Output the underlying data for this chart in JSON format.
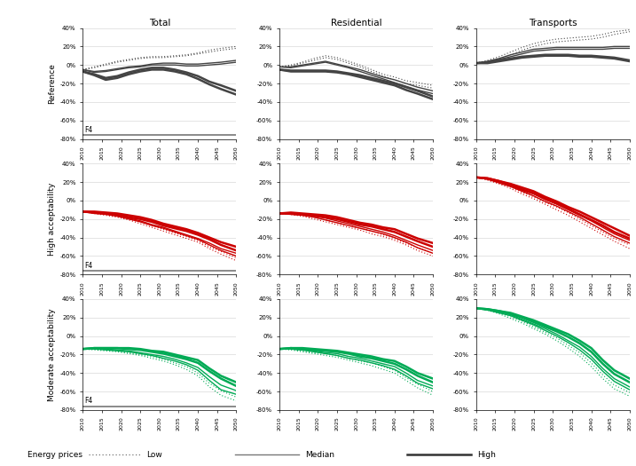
{
  "years": [
    2010,
    2013,
    2016,
    2019,
    2022,
    2025,
    2028,
    2031,
    2034,
    2037,
    2040,
    2043,
    2046,
    2050
  ],
  "col_titles": [
    "Total",
    "Residential",
    "Transports"
  ],
  "row_titles": [
    "Reference",
    "High acceptability",
    "Moderate acceptability"
  ],
  "ylim": [
    -80,
    40
  ],
  "yticks": [
    -80,
    -60,
    -40,
    -20,
    0,
    20,
    40
  ],
  "ytick_labels": [
    "-80%",
    "-60%",
    "-40%",
    "-20%",
    "0%",
    "20%",
    "40%"
  ],
  "f4_y": -76,
  "colors": {
    "reference": "#444444",
    "high": "#cc0000",
    "moderate": "#00aa55"
  },
  "data": {
    "reference": {
      "total": {
        "low1": [
          -5,
          -2,
          1,
          4,
          6,
          8,
          9,
          9,
          10,
          11,
          13,
          16,
          18,
          20
        ],
        "low2": [
          -5,
          -3,
          0,
          3,
          5,
          7,
          8,
          8,
          9,
          10,
          12,
          14,
          16,
          18
        ],
        "median1": [
          -5,
          -7,
          -6,
          -4,
          -2,
          -1,
          1,
          2,
          2,
          1,
          1,
          2,
          3,
          5
        ],
        "median2": [
          -5,
          -8,
          -7,
          -5,
          -3,
          -2,
          0,
          0,
          0,
          -1,
          -1,
          0,
          1,
          3
        ],
        "high1": [
          -7,
          -10,
          -14,
          -12,
          -8,
          -5,
          -3,
          -3,
          -5,
          -8,
          -12,
          -18,
          -22,
          -28
        ],
        "high2": [
          -7,
          -11,
          -16,
          -14,
          -10,
          -7,
          -5,
          -5,
          -7,
          -10,
          -15,
          -21,
          -26,
          -32
        ]
      },
      "residential": {
        "low1": [
          -2,
          0,
          3,
          7,
          10,
          8,
          4,
          0,
          -5,
          -10,
          -13,
          -17,
          -19,
          -22
        ],
        "low2": [
          -2,
          -1,
          2,
          5,
          8,
          6,
          2,
          -2,
          -7,
          -12,
          -16,
          -20,
          -22,
          -25
        ],
        "median1": [
          -2,
          -2,
          0,
          2,
          4,
          1,
          -2,
          -5,
          -9,
          -13,
          -16,
          -20,
          -24,
          -28
        ],
        "median2": [
          -2,
          -3,
          -1,
          1,
          3,
          0,
          -3,
          -7,
          -11,
          -15,
          -19,
          -23,
          -27,
          -31
        ],
        "high1": [
          -5,
          -6,
          -6,
          -6,
          -6,
          -7,
          -9,
          -11,
          -14,
          -17,
          -20,
          -24,
          -28,
          -34
        ],
        "high2": [
          -5,
          -7,
          -7,
          -7,
          -7,
          -8,
          -10,
          -13,
          -16,
          -19,
          -22,
          -27,
          -31,
          -37
        ]
      },
      "transports": {
        "low1": [
          2,
          5,
          9,
          14,
          19,
          23,
          26,
          28,
          29,
          30,
          31,
          33,
          36,
          38
        ],
        "low2": [
          2,
          4,
          7,
          11,
          16,
          20,
          23,
          25,
          26,
          27,
          28,
          30,
          33,
          36
        ],
        "median1": [
          2,
          4,
          7,
          11,
          14,
          17,
          18,
          19,
          19,
          19,
          19,
          19,
          20,
          20
        ],
        "median2": [
          2,
          3,
          6,
          9,
          12,
          15,
          16,
          17,
          17,
          17,
          17,
          17,
          18,
          18
        ],
        "high1": [
          2,
          3,
          5,
          7,
          9,
          10,
          11,
          11,
          11,
          10,
          10,
          9,
          8,
          5
        ],
        "high2": [
          2,
          2,
          4,
          6,
          8,
          9,
          10,
          10,
          10,
          9,
          9,
          8,
          7,
          4
        ]
      }
    },
    "high": {
      "total": {
        "low1": [
          -12,
          -14,
          -16,
          -18,
          -21,
          -25,
          -29,
          -33,
          -37,
          -41,
          -45,
          -52,
          -58,
          -65
        ],
        "low2": [
          -12,
          -13,
          -15,
          -17,
          -20,
          -23,
          -27,
          -31,
          -35,
          -39,
          -43,
          -50,
          -55,
          -62
        ],
        "median1": [
          -12,
          -14,
          -15,
          -17,
          -20,
          -23,
          -27,
          -30,
          -34,
          -38,
          -42,
          -48,
          -54,
          -60
        ],
        "median2": [
          -12,
          -13,
          -14,
          -16,
          -19,
          -22,
          -26,
          -29,
          -33,
          -37,
          -41,
          -46,
          -52,
          -57
        ],
        "high1": [
          -12,
          -13,
          -14,
          -15,
          -18,
          -20,
          -23,
          -27,
          -30,
          -33,
          -37,
          -42,
          -48,
          -54
        ],
        "high2": [
          -12,
          -12,
          -13,
          -14,
          -16,
          -18,
          -21,
          -25,
          -28,
          -31,
          -35,
          -40,
          -45,
          -50
        ]
      },
      "residential": {
        "low1": [
          -14,
          -15,
          -17,
          -20,
          -23,
          -26,
          -29,
          -32,
          -36,
          -39,
          -43,
          -48,
          -54,
          -60
        ],
        "low2": [
          -14,
          -15,
          -16,
          -18,
          -21,
          -24,
          -27,
          -30,
          -33,
          -37,
          -41,
          -46,
          -51,
          -57
        ],
        "median1": [
          -14,
          -15,
          -16,
          -18,
          -21,
          -24,
          -27,
          -30,
          -33,
          -36,
          -40,
          -45,
          -51,
          -57
        ],
        "median2": [
          -14,
          -14,
          -15,
          -17,
          -19,
          -22,
          -25,
          -28,
          -31,
          -34,
          -38,
          -43,
          -48,
          -54
        ],
        "high1": [
          -14,
          -14,
          -15,
          -16,
          -18,
          -20,
          -23,
          -26,
          -28,
          -31,
          -34,
          -39,
          -44,
          -50
        ],
        "high2": [
          -14,
          -13,
          -14,
          -15,
          -16,
          -18,
          -21,
          -24,
          -26,
          -29,
          -31,
          -36,
          -41,
          -46
        ]
      },
      "transports": {
        "low1": [
          25,
          22,
          18,
          13,
          7,
          2,
          -4,
          -10,
          -16,
          -23,
          -30,
          -37,
          -44,
          -52
        ],
        "low2": [
          25,
          23,
          19,
          15,
          9,
          4,
          -2,
          -7,
          -13,
          -20,
          -27,
          -34,
          -41,
          -48
        ],
        "median1": [
          25,
          23,
          19,
          15,
          10,
          5,
          -1,
          -6,
          -12,
          -18,
          -25,
          -32,
          -39,
          -46
        ],
        "median2": [
          25,
          23,
          20,
          16,
          11,
          7,
          1,
          -4,
          -10,
          -16,
          -22,
          -29,
          -36,
          -43
        ],
        "high1": [
          25,
          24,
          21,
          17,
          12,
          8,
          2,
          -3,
          -9,
          -15,
          -21,
          -27,
          -34,
          -41
        ],
        "high2": [
          25,
          24,
          21,
          18,
          14,
          10,
          4,
          -1,
          -7,
          -12,
          -18,
          -24,
          -30,
          -38
        ]
      }
    },
    "moderate": {
      "total": {
        "low1": [
          -14,
          -15,
          -16,
          -17,
          -19,
          -21,
          -24,
          -27,
          -31,
          -36,
          -43,
          -55,
          -64,
          -70
        ],
        "low2": [
          -14,
          -14,
          -15,
          -16,
          -18,
          -20,
          -22,
          -25,
          -29,
          -33,
          -40,
          -51,
          -59,
          -66
        ],
        "median1": [
          -14,
          -14,
          -15,
          -16,
          -17,
          -19,
          -21,
          -24,
          -27,
          -31,
          -37,
          -48,
          -58,
          -63
        ],
        "median2": [
          -14,
          -14,
          -14,
          -15,
          -16,
          -18,
          -20,
          -22,
          -25,
          -29,
          -34,
          -44,
          -53,
          -59
        ],
        "high1": [
          -14,
          -13,
          -13,
          -13,
          -14,
          -15,
          -17,
          -19,
          -22,
          -25,
          -29,
          -38,
          -46,
          -54
        ],
        "high2": [
          -14,
          -13,
          -13,
          -13,
          -13,
          -14,
          -16,
          -17,
          -20,
          -23,
          -26,
          -35,
          -43,
          -50
        ]
      },
      "residential": {
        "low1": [
          -14,
          -15,
          -17,
          -19,
          -21,
          -23,
          -26,
          -29,
          -32,
          -36,
          -40,
          -48,
          -56,
          -64
        ],
        "low2": [
          -14,
          -14,
          -16,
          -18,
          -19,
          -21,
          -24,
          -27,
          -29,
          -33,
          -37,
          -45,
          -52,
          -60
        ],
        "median1": [
          -14,
          -14,
          -15,
          -17,
          -19,
          -21,
          -24,
          -26,
          -29,
          -32,
          -36,
          -43,
          -51,
          -57
        ],
        "median2": [
          -14,
          -14,
          -15,
          -16,
          -18,
          -19,
          -22,
          -24,
          -27,
          -30,
          -33,
          -40,
          -48,
          -54
        ],
        "high1": [
          -14,
          -13,
          -14,
          -15,
          -16,
          -17,
          -19,
          -22,
          -24,
          -27,
          -30,
          -36,
          -43,
          -50
        ],
        "high2": [
          -14,
          -13,
          -13,
          -14,
          -15,
          -16,
          -18,
          -20,
          -22,
          -25,
          -27,
          -33,
          -40,
          -46
        ]
      },
      "transports": {
        "low1": [
          30,
          28,
          24,
          19,
          14,
          8,
          2,
          -5,
          -13,
          -22,
          -33,
          -46,
          -57,
          -65
        ],
        "low2": [
          30,
          28,
          25,
          21,
          16,
          10,
          4,
          -2,
          -10,
          -18,
          -29,
          -42,
          -53,
          -61
        ],
        "median1": [
          30,
          28,
          25,
          22,
          17,
          12,
          6,
          0,
          -7,
          -15,
          -25,
          -38,
          -49,
          -58
        ],
        "median2": [
          30,
          29,
          26,
          23,
          18,
          13,
          8,
          2,
          -5,
          -12,
          -22,
          -35,
          -46,
          -55
        ],
        "high1": [
          30,
          29,
          27,
          24,
          20,
          15,
          10,
          5,
          -1,
          -8,
          -17,
          -30,
          -41,
          -50
        ],
        "high2": [
          30,
          29,
          27,
          25,
          21,
          17,
          12,
          7,
          2,
          -5,
          -13,
          -26,
          -37,
          -46
        ]
      }
    }
  },
  "legend": {
    "low_label": "Low",
    "median_label": "Median",
    "high_label": "High",
    "energy_prices_label": "Energy prices"
  },
  "background_color": "#ffffff",
  "grid_color": "#d0d0d0",
  "xticks": [
    2010,
    2015,
    2020,
    2025,
    2030,
    2035,
    2040,
    2045,
    2050
  ]
}
